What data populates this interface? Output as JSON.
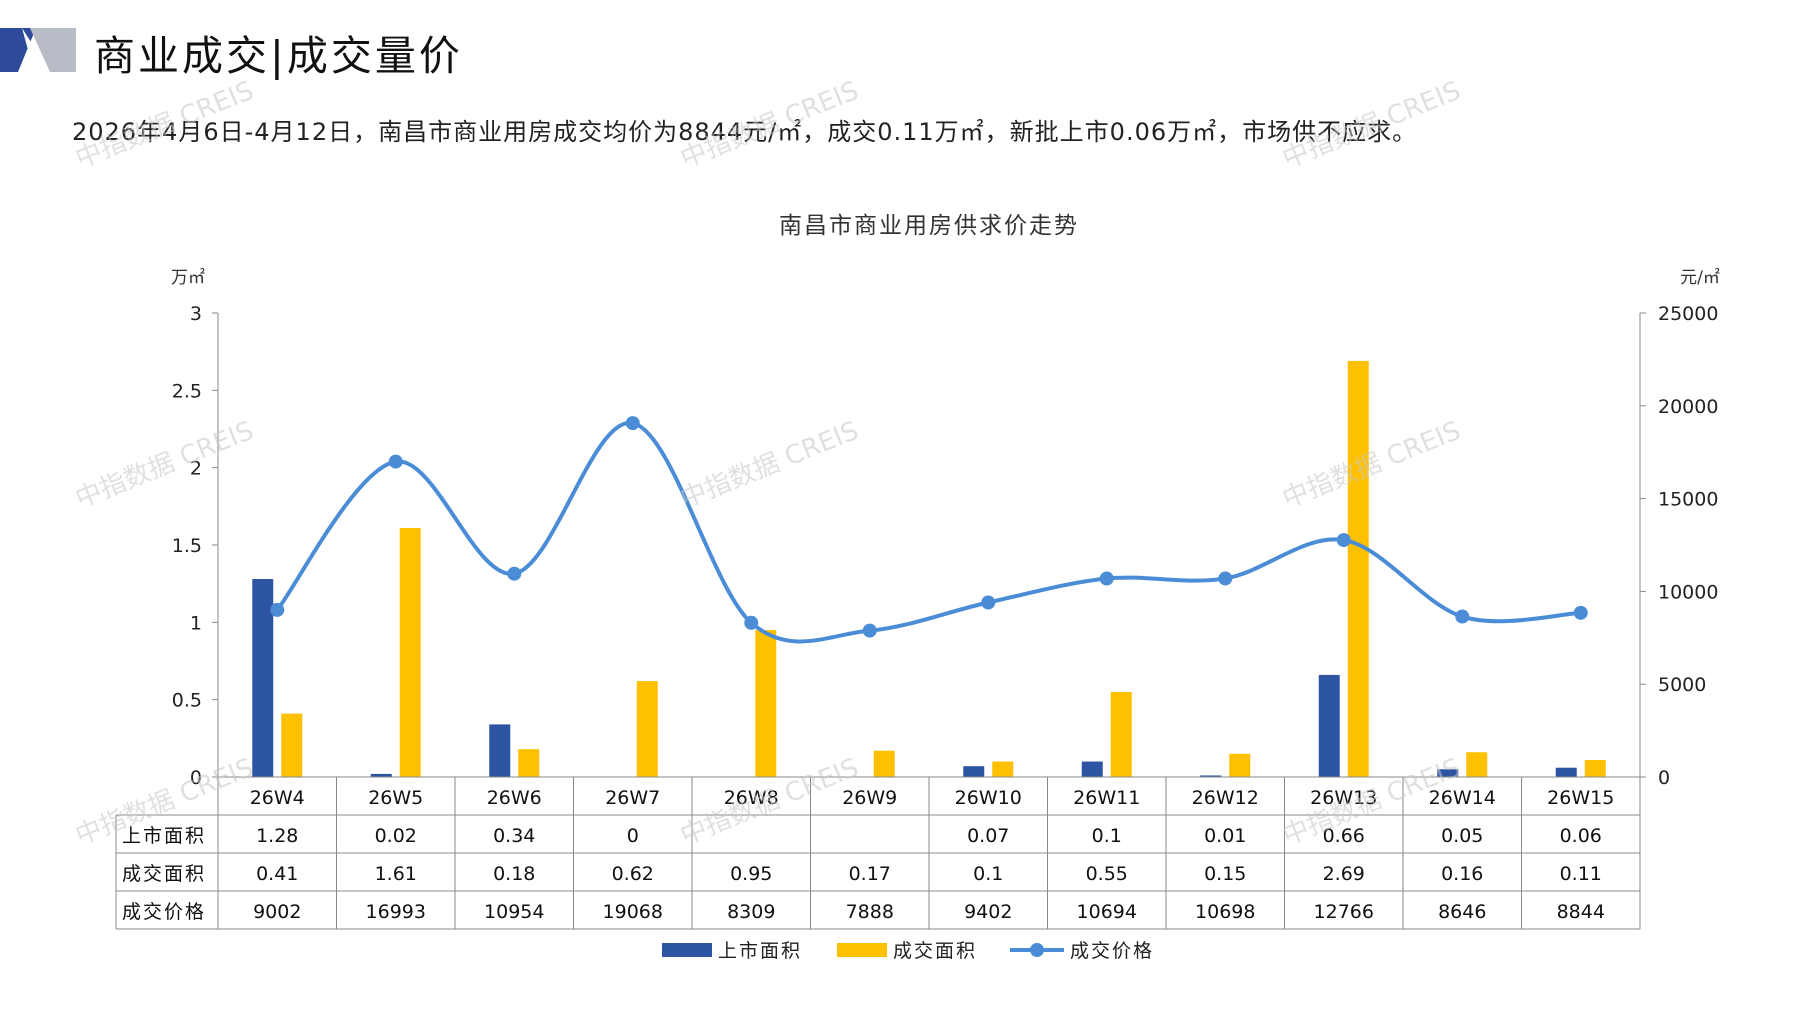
{
  "header": {
    "title": "商业成交|成交量价",
    "summary": "2026年4月6日-4月12日，南昌市商业用房成交均价为8844元/㎡，成交0.11万㎡，新批上市0.06万㎡，市场供不应求。"
  },
  "watermark": "中指数据 CREIS",
  "colors": {
    "supply": "#2E55A4",
    "deal_area": "#FFC000",
    "price": "#4A8CD6",
    "logo_dark": "#2E4A9A",
    "logo_gray": "#B8BCC6"
  },
  "chart_data": {
    "type": "bar",
    "title": "南昌市商业用房供求价走势",
    "y_left_unit": "万㎡",
    "y_right_unit": "元/㎡",
    "ylim_left": [
      0,
      3
    ],
    "ylim_right": [
      0,
      25000
    ],
    "y_left_ticks": [
      "0",
      "0.5",
      "1",
      "1.5",
      "2",
      "2.5",
      "3"
    ],
    "y_right_ticks": [
      "0",
      "5000",
      "10000",
      "15000",
      "20000",
      "25000"
    ],
    "categories": [
      "26W4",
      "26W5",
      "26W6",
      "26W7",
      "26W8",
      "26W9",
      "26W10",
      "26W11",
      "26W12",
      "26W13",
      "26W14",
      "26W15"
    ],
    "series": [
      {
        "name": "上市面积",
        "type": "bar",
        "axis": "left",
        "values": [
          1.28,
          0.02,
          0.34,
          0,
          null,
          null,
          0.07,
          0.1,
          0.01,
          0.66,
          0.05,
          0.06
        ],
        "labels": [
          "1.28",
          "0.02",
          "0.34",
          "0",
          "",
          "",
          "0.07",
          "0.1",
          "0.01",
          "0.66",
          "0.05",
          "0.06"
        ]
      },
      {
        "name": "成交面积",
        "type": "bar",
        "axis": "left",
        "values": [
          0.41,
          1.61,
          0.18,
          0.62,
          0.95,
          0.17,
          0.1,
          0.55,
          0.15,
          2.69,
          0.16,
          0.11
        ],
        "labels": [
          "0.41",
          "1.61",
          "0.18",
          "0.62",
          "0.95",
          "0.17",
          "0.1",
          "0.55",
          "0.15",
          "2.69",
          "0.16",
          "0.11"
        ]
      },
      {
        "name": "成交价格",
        "type": "line",
        "axis": "right",
        "values": [
          9002,
          16993,
          10954,
          19068,
          8309,
          7888,
          9402,
          10694,
          10698,
          12766,
          8646,
          8844
        ],
        "labels": [
          "9002",
          "16993",
          "10954",
          "19068",
          "8309",
          "7888",
          "9402",
          "10694",
          "10698",
          "12766",
          "8646",
          "8844"
        ]
      }
    ],
    "legend": [
      "上市面积",
      "成交面积",
      "成交价格"
    ],
    "legend_position": "bottom"
  }
}
